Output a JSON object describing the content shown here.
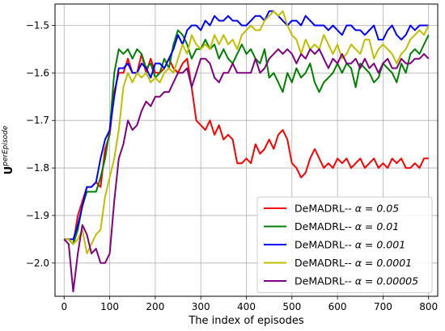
{
  "chart_data": {
    "type": "line",
    "title": "",
    "xlabel": "The index of episodes",
    "ylabel_main": "U",
    "ylabel_sup": "perEpisode",
    "xlim": [
      -20,
      820
    ],
    "ylim": [
      -2.07,
      -1.455
    ],
    "xticks": [
      0,
      100,
      200,
      300,
      400,
      500,
      600,
      700,
      800
    ],
    "yticks": [
      -2.0,
      -1.9,
      -1.8,
      -1.7,
      -1.6,
      -1.5
    ],
    "ytick_labels": [
      "−2.0",
      "−1.9",
      "−1.8",
      "−1.7",
      "−1.6",
      "−1.5"
    ],
    "grid": true,
    "legend_position": "lower-right",
    "series": [
      {
        "name": "DeMADRL-- α = 0.05",
        "legend_prefix": "DeMADRL-- ",
        "legend_alpha": "α = 0.05",
        "color": "#ff0000",
        "x": [
          0,
          10,
          20,
          30,
          40,
          50,
          60,
          70,
          80,
          90,
          100,
          110,
          120,
          130,
          140,
          150,
          160,
          170,
          180,
          190,
          200,
          210,
          220,
          230,
          240,
          250,
          260,
          270,
          280,
          290,
          300,
          310,
          320,
          330,
          340,
          350,
          360,
          370,
          380,
          390,
          400,
          410,
          420,
          430,
          440,
          450,
          460,
          470,
          480,
          490,
          500,
          510,
          520,
          530,
          540,
          550,
          560,
          570,
          580,
          590,
          600,
          610,
          620,
          630,
          640,
          650,
          660,
          670,
          680,
          690,
          700,
          710,
          720,
          730,
          740,
          750,
          760,
          770,
          780,
          790,
          800
        ],
        "y": [
          -1.95,
          -1.95,
          -1.96,
          -1.9,
          -1.87,
          -1.84,
          -1.84,
          -1.83,
          -1.84,
          -1.76,
          -1.73,
          -1.64,
          -1.6,
          -1.6,
          -1.57,
          -1.6,
          -1.6,
          -1.56,
          -1.6,
          -1.57,
          -1.6,
          -1.6,
          -1.59,
          -1.57,
          -1.59,
          -1.6,
          -1.58,
          -1.57,
          -1.63,
          -1.7,
          -1.71,
          -1.72,
          -1.7,
          -1.73,
          -1.71,
          -1.74,
          -1.73,
          -1.74,
          -1.79,
          -1.79,
          -1.78,
          -1.79,
          -1.75,
          -1.77,
          -1.76,
          -1.74,
          -1.76,
          -1.73,
          -1.72,
          -1.74,
          -1.79,
          -1.8,
          -1.82,
          -1.81,
          -1.78,
          -1.76,
          -1.78,
          -1.8,
          -1.79,
          -1.8,
          -1.78,
          -1.79,
          -1.78,
          -1.8,
          -1.79,
          -1.78,
          -1.8,
          -1.79,
          -1.78,
          -1.8,
          -1.79,
          -1.8,
          -1.78,
          -1.79,
          -1.78,
          -1.8,
          -1.8,
          -1.79,
          -1.8,
          -1.78,
          -1.78
        ]
      },
      {
        "name": "DeMADRL-- α = 0.01",
        "legend_prefix": "DeMADRL-- ",
        "legend_alpha": "α = 0.01",
        "color": "#008000",
        "x": [
          0,
          10,
          20,
          30,
          40,
          50,
          60,
          70,
          80,
          90,
          100,
          110,
          120,
          130,
          140,
          150,
          160,
          170,
          180,
          190,
          200,
          210,
          220,
          230,
          240,
          250,
          260,
          270,
          280,
          290,
          300,
          310,
          320,
          330,
          340,
          350,
          360,
          370,
          380,
          390,
          400,
          410,
          420,
          430,
          440,
          450,
          460,
          470,
          480,
          490,
          500,
          510,
          520,
          530,
          540,
          550,
          560,
          570,
          580,
          590,
          600,
          610,
          620,
          630,
          640,
          650,
          660,
          670,
          680,
          690,
          700,
          710,
          720,
          730,
          740,
          750,
          760,
          770,
          780,
          790,
          800
        ],
        "y": [
          -1.95,
          -1.95,
          -1.96,
          -1.93,
          -1.88,
          -1.85,
          -1.85,
          -1.85,
          -1.82,
          -1.78,
          -1.72,
          -1.6,
          -1.55,
          -1.56,
          -1.55,
          -1.57,
          -1.55,
          -1.56,
          -1.59,
          -1.58,
          -1.61,
          -1.6,
          -1.57,
          -1.59,
          -1.54,
          -1.51,
          -1.52,
          -1.54,
          -1.57,
          -1.55,
          -1.55,
          -1.53,
          -1.55,
          -1.54,
          -1.57,
          -1.55,
          -1.57,
          -1.58,
          -1.56,
          -1.54,
          -1.56,
          -1.55,
          -1.57,
          -1.58,
          -1.55,
          -1.61,
          -1.6,
          -1.62,
          -1.64,
          -1.6,
          -1.62,
          -1.59,
          -1.61,
          -1.6,
          -1.58,
          -1.62,
          -1.64,
          -1.62,
          -1.61,
          -1.6,
          -1.58,
          -1.6,
          -1.58,
          -1.59,
          -1.63,
          -1.58,
          -1.59,
          -1.6,
          -1.62,
          -1.61,
          -1.58,
          -1.59,
          -1.6,
          -1.62,
          -1.58,
          -1.6,
          -1.56,
          -1.55,
          -1.56,
          -1.54,
          -1.52
        ]
      },
      {
        "name": "DeMADRL-- α = 0.001",
        "legend_prefix": "DeMADRL-- ",
        "legend_alpha": "α = 0.001",
        "color": "#0000ff",
        "x": [
          0,
          10,
          20,
          30,
          40,
          50,
          60,
          70,
          80,
          90,
          100,
          110,
          120,
          130,
          140,
          150,
          160,
          170,
          180,
          190,
          200,
          210,
          220,
          230,
          240,
          250,
          260,
          270,
          280,
          290,
          300,
          310,
          320,
          330,
          340,
          350,
          360,
          370,
          380,
          390,
          400,
          410,
          420,
          430,
          440,
          450,
          460,
          470,
          480,
          490,
          500,
          510,
          520,
          530,
          540,
          550,
          560,
          570,
          580,
          590,
          600,
          610,
          620,
          630,
          640,
          650,
          660,
          670,
          680,
          690,
          700,
          710,
          720,
          730,
          740,
          750,
          760,
          770,
          780,
          790,
          800
        ],
        "y": [
          -1.95,
          -1.95,
          -1.95,
          -1.92,
          -1.88,
          -1.84,
          -1.84,
          -1.83,
          -1.78,
          -1.74,
          -1.72,
          -1.65,
          -1.59,
          -1.59,
          -1.58,
          -1.6,
          -1.6,
          -1.58,
          -1.59,
          -1.61,
          -1.58,
          -1.58,
          -1.59,
          -1.57,
          -1.55,
          -1.52,
          -1.54,
          -1.51,
          -1.5,
          -1.5,
          -1.51,
          -1.49,
          -1.5,
          -1.48,
          -1.49,
          -1.49,
          -1.48,
          -1.49,
          -1.49,
          -1.5,
          -1.5,
          -1.49,
          -1.48,
          -1.48,
          -1.49,
          -1.47,
          -1.47,
          -1.48,
          -1.49,
          -1.5,
          -1.49,
          -1.49,
          -1.5,
          -1.48,
          -1.49,
          -1.5,
          -1.5,
          -1.5,
          -1.51,
          -1.5,
          -1.51,
          -1.52,
          -1.5,
          -1.5,
          -1.51,
          -1.51,
          -1.52,
          -1.51,
          -1.5,
          -1.53,
          -1.53,
          -1.51,
          -1.5,
          -1.52,
          -1.53,
          -1.52,
          -1.5,
          -1.51,
          -1.5,
          -1.5,
          -1.5
        ]
      },
      {
        "name": "DeMADRL-- α = 0.0001",
        "legend_prefix": "DeMADRL-- ",
        "legend_alpha": "α = 0.0001",
        "color": "#bfbf00",
        "x": [
          0,
          10,
          20,
          30,
          40,
          50,
          60,
          70,
          80,
          90,
          100,
          110,
          120,
          130,
          140,
          150,
          160,
          170,
          180,
          190,
          200,
          210,
          220,
          230,
          240,
          250,
          260,
          270,
          280,
          290,
          300,
          310,
          320,
          330,
          340,
          350,
          360,
          370,
          380,
          390,
          400,
          410,
          420,
          430,
          440,
          450,
          460,
          470,
          480,
          490,
          500,
          510,
          520,
          530,
          540,
          550,
          560,
          570,
          580,
          590,
          600,
          610,
          620,
          630,
          640,
          650,
          660,
          670,
          680,
          690,
          700,
          710,
          720,
          730,
          740,
          750,
          760,
          770,
          780,
          790,
          800
        ],
        "y": [
          -1.95,
          -1.95,
          -1.96,
          -1.95,
          -1.93,
          -1.98,
          -1.96,
          -1.94,
          -1.93,
          -1.86,
          -1.82,
          -1.78,
          -1.72,
          -1.63,
          -1.6,
          -1.62,
          -1.6,
          -1.61,
          -1.6,
          -1.62,
          -1.61,
          -1.62,
          -1.6,
          -1.59,
          -1.6,
          -1.57,
          -1.54,
          -1.56,
          -1.52,
          -1.54,
          -1.55,
          -1.54,
          -1.55,
          -1.52,
          -1.54,
          -1.52,
          -1.54,
          -1.53,
          -1.55,
          -1.52,
          -1.51,
          -1.5,
          -1.51,
          -1.51,
          -1.49,
          -1.48,
          -1.47,
          -1.48,
          -1.47,
          -1.5,
          -1.52,
          -1.53,
          -1.56,
          -1.53,
          -1.55,
          -1.54,
          -1.55,
          -1.52,
          -1.54,
          -1.56,
          -1.54,
          -1.57,
          -1.56,
          -1.54,
          -1.55,
          -1.56,
          -1.53,
          -1.53,
          -1.57,
          -1.55,
          -1.54,
          -1.55,
          -1.56,
          -1.58,
          -1.56,
          -1.55,
          -1.53,
          -1.52,
          -1.51,
          -1.52,
          -1.5
        ]
      },
      {
        "name": "DeMADRL-- α = 0.00005",
        "legend_prefix": "DeMADRL-- ",
        "legend_alpha": "α = 0.00005",
        "color": "#800080",
        "x": [
          0,
          10,
          20,
          30,
          40,
          50,
          60,
          70,
          80,
          90,
          100,
          110,
          120,
          130,
          140,
          150,
          160,
          170,
          180,
          190,
          200,
          210,
          220,
          230,
          240,
          250,
          260,
          270,
          280,
          290,
          300,
          310,
          320,
          330,
          340,
          350,
          360,
          370,
          380,
          390,
          400,
          410,
          420,
          430,
          440,
          450,
          460,
          470,
          480,
          490,
          500,
          510,
          520,
          530,
          540,
          550,
          560,
          570,
          580,
          590,
          600,
          610,
          620,
          630,
          640,
          650,
          660,
          670,
          680,
          690,
          700,
          710,
          720,
          730,
          740,
          750,
          760,
          770,
          780,
          790,
          800
        ],
        "y": [
          -1.95,
          -1.96,
          -2.06,
          -1.98,
          -1.92,
          -1.94,
          -1.98,
          -1.97,
          -2.0,
          -2.0,
          -1.98,
          -1.87,
          -1.78,
          -1.75,
          -1.7,
          -1.72,
          -1.71,
          -1.68,
          -1.66,
          -1.67,
          -1.65,
          -1.65,
          -1.64,
          -1.64,
          -1.62,
          -1.6,
          -1.6,
          -1.59,
          -1.63,
          -1.6,
          -1.57,
          -1.57,
          -1.58,
          -1.61,
          -1.62,
          -1.6,
          -1.6,
          -1.58,
          -1.6,
          -1.6,
          -1.6,
          -1.6,
          -1.57,
          -1.6,
          -1.59,
          -1.57,
          -1.56,
          -1.55,
          -1.56,
          -1.55,
          -1.56,
          -1.58,
          -1.56,
          -1.57,
          -1.55,
          -1.56,
          -1.55,
          -1.57,
          -1.59,
          -1.57,
          -1.58,
          -1.56,
          -1.58,
          -1.58,
          -1.57,
          -1.59,
          -1.57,
          -1.59,
          -1.58,
          -1.6,
          -1.58,
          -1.57,
          -1.59,
          -1.59,
          -1.57,
          -1.58,
          -1.58,
          -1.57,
          -1.57,
          -1.56,
          -1.57
        ]
      }
    ]
  }
}
